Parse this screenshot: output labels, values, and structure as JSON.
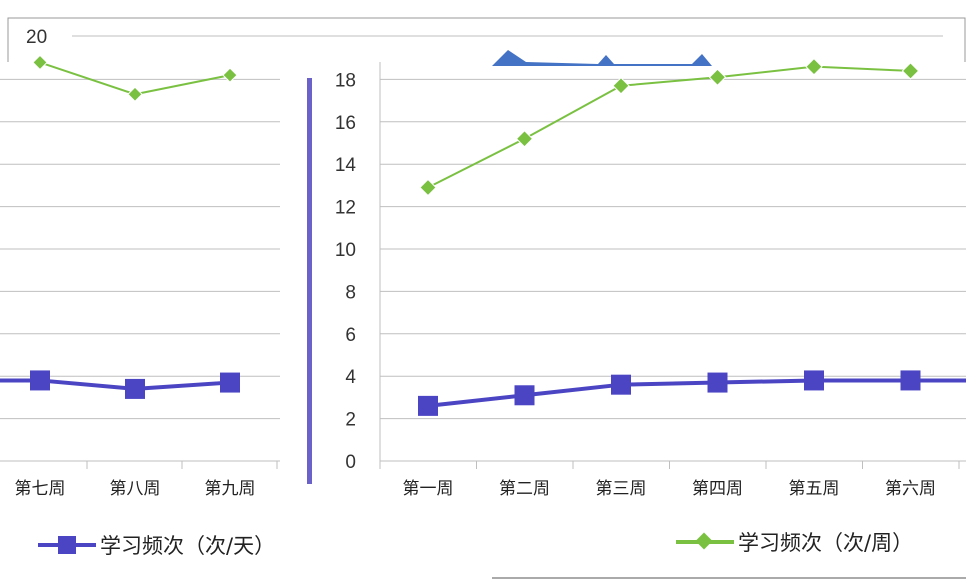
{
  "chart_data": {
    "type": "line",
    "categories": [
      "第一周",
      "第二周",
      "第三周",
      "第四周",
      "第五周",
      "第六周"
    ],
    "left_panel_categories": [
      "第七周",
      "第八周",
      "第九周"
    ],
    "series": [
      {
        "name": "学习频次（次/天）",
        "color": "#4B45C4",
        "marker": "square",
        "values": [
          2.6,
          3.1,
          3.6,
          3.7,
          3.8,
          3.8
        ],
        "left_panel_values": [
          3.8,
          3.4,
          3.7
        ]
      },
      {
        "name": "学习频次（次/周）",
        "color": "#7AC142",
        "marker": "diamond",
        "values": [
          12.9,
          15.2,
          17.7,
          18.1,
          18.6,
          18.4
        ],
        "left_panel_values": [
          18.8,
          17.3,
          18.2
        ]
      }
    ],
    "area_series_color": "#4472C4",
    "y_ticks": [
      "0",
      "2",
      "4",
      "6",
      "8",
      "10",
      "12",
      "14",
      "16",
      "18"
    ],
    "y_top_label": "20",
    "ylim": [
      0,
      20
    ],
    "grid": true,
    "legend": "bottom"
  }
}
